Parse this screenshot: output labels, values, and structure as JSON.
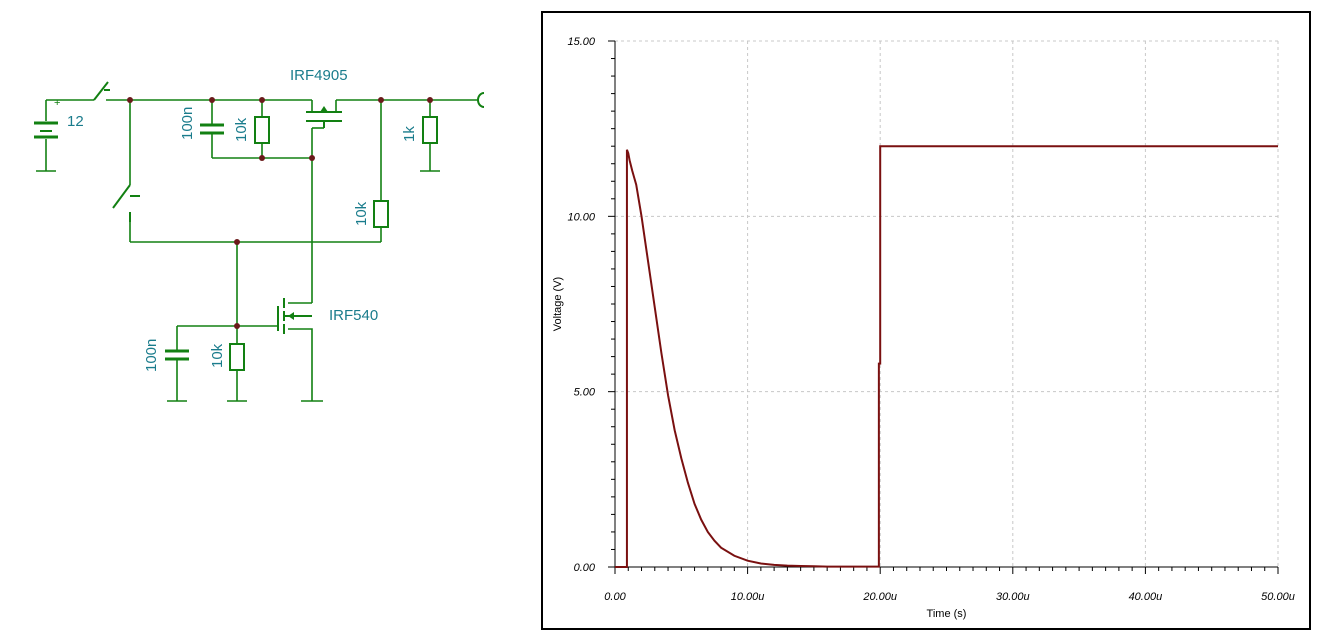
{
  "schematic": {
    "battery_value": "12",
    "battery_polarity": "+",
    "pmos_part": "IRF4905",
    "nmos_part": "IRF540",
    "cap_top_value": "100n",
    "res_pmos_gs_value": "10k",
    "res_load_value": "1k",
    "res_right_value": "10k",
    "cap_bottom_value": "100n",
    "res_bottom_value": "10k",
    "wire_color": "#128012",
    "label_color": "#1a7c8c"
  },
  "chart_data": {
    "type": "line",
    "title": "",
    "xlabel": "Time (s)",
    "ylabel": "Voltage (V)",
    "xlim": [
      0,
      50
    ],
    "ylim": [
      0,
      15
    ],
    "x_unit_suffix": "u",
    "x_ticks": [
      "0.00",
      "10.00u",
      "20.00u",
      "30.00u",
      "40.00u",
      "50.00u"
    ],
    "y_ticks": [
      "0.00",
      "5.00",
      "10.00",
      "15.00"
    ],
    "grid": true,
    "line_color": "#7a1010",
    "series": [
      {
        "x": [
          0,
          0.9,
          0.9,
          1.0,
          1.1,
          1.3,
          1.6,
          2.0,
          2.5,
          3.0,
          3.5,
          4.0,
          4.5,
          5.0,
          5.5,
          6.0,
          6.5,
          7.0,
          7.5,
          8.0,
          9.0,
          10.0,
          11.0,
          12.0,
          13.0,
          14.0,
          15.0,
          16.0,
          17.0,
          18.0,
          19.0,
          19.9,
          19.9,
          20.0,
          20.0,
          50.0
        ],
        "y": [
          0,
          0,
          11.9,
          11.8,
          11.6,
          11.3,
          10.9,
          10.0,
          8.7,
          7.4,
          6.1,
          4.9,
          3.9,
          3.1,
          2.4,
          1.8,
          1.35,
          1.0,
          0.75,
          0.55,
          0.32,
          0.18,
          0.1,
          0.06,
          0.04,
          0.03,
          0.02,
          0.01,
          0.01,
          0.01,
          0.01,
          0.01,
          5.8,
          5.8,
          12.0,
          12.0
        ]
      }
    ]
  }
}
